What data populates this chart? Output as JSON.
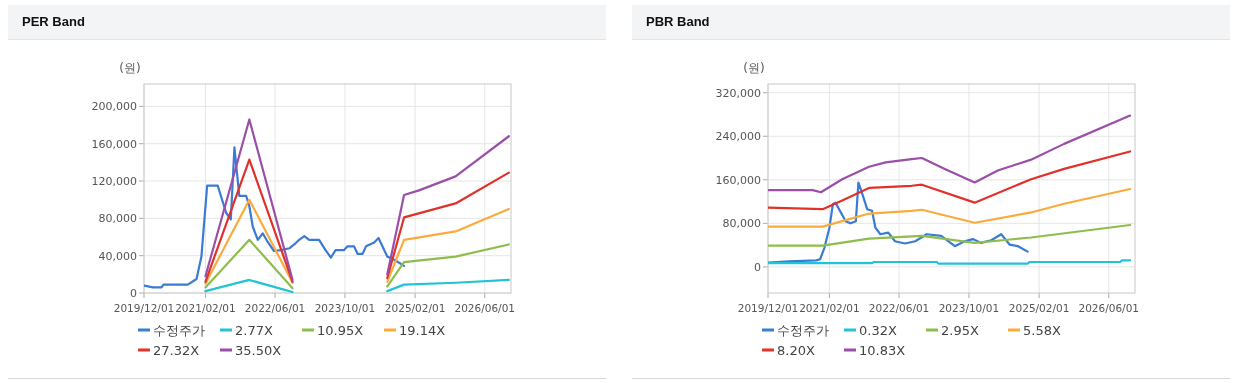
{
  "chart_data": [
    {
      "type": "line",
      "title": "PER Band",
      "ylabel": "(원)",
      "grid": true,
      "legend": "bottom",
      "marker": "none",
      "line_style": "solid",
      "xlim": [
        "2019-12-01",
        "2026-12-01"
      ],
      "ylim": [
        0,
        224000
      ],
      "xticks": [
        {
          "value": "2019-12-01",
          "label": "2019/12/01"
        },
        {
          "value": "2021-02-01",
          "label": "2021/02/01"
        },
        {
          "value": "2022-06-01",
          "label": "2022/06/01"
        },
        {
          "value": "2023-10-01",
          "label": "2023/10/01"
        },
        {
          "value": "2025-02-01",
          "label": "2025/02/01"
        },
        {
          "value": "2026-06-01",
          "label": "2026/06/01"
        }
      ],
      "yticks": [
        0,
        {
          "value": 40000,
          "label": "40,000"
        },
        {
          "value": 80000,
          "label": "80,000"
        },
        {
          "value": 120000,
          "label": "120,000"
        },
        {
          "value": 160000,
          "label": "160,000"
        },
        {
          "value": 200000,
          "label": "200,000"
        }
      ],
      "series": [
        {
          "name": "수정주가",
          "color": "#3a7bd5",
          "x": [
            "2019-12-01",
            "2020-02-02",
            "2020-04-01",
            "2020-04-15",
            "2020-10-01",
            "2020-12-01",
            "2021-01-04",
            "2021-02-13",
            "2021-04-28",
            "2021-06-25",
            "2021-07-28",
            "2021-08-22",
            "2021-09-25",
            "2021-11-12",
            "2021-12-04",
            "2021-12-28",
            "2022-02-01",
            "2022-03-07",
            "2022-04-10",
            "2022-05-25",
            "2022-07-12",
            "2022-09-10",
            "2022-10-13",
            "2022-11-16",
            "2022-12-22",
            "2023-01-25",
            "2023-04-04",
            "2023-05-19",
            "2023-06-25",
            "2023-07-28",
            "2023-09-25",
            "2023-10-19",
            "2023-12-04",
            "2023-12-28",
            "2024-02-01",
            "2024-02-25",
            "2024-04-22",
            "2024-05-22",
            "2024-07-22",
            "2024-08-25",
            "2024-11-16"
          ],
          "values": [
            8000,
            6000,
            6000,
            9000,
            9000,
            15000,
            39000,
            115000,
            115000,
            86000,
            79000,
            156000,
            104000,
            104000,
            93000,
            71000,
            57000,
            64000,
            55000,
            45000,
            46000,
            48000,
            52000,
            57000,
            61000,
            57000,
            57000,
            46000,
            38000,
            46000,
            46000,
            50000,
            50000,
            42000,
            42000,
            50000,
            54000,
            59000,
            39000,
            37000,
            29000
          ]
        },
        {
          "name": "2.77X",
          "color": "#22c3d6",
          "x": [
            "2021-02-01",
            "2021-12-04",
            "2022-10-01",
            null,
            "2024-07-22",
            "2024-11-16",
            "2025-11-10",
            "2026-11-16"
          ],
          "values": [
            2000,
            14000,
            1000,
            null,
            2000,
            9000,
            11000,
            14000
          ]
        },
        {
          "name": "10.95X",
          "color": "#8ebd4c",
          "x": [
            "2021-02-01",
            "2021-12-04",
            "2022-10-01",
            null,
            "2024-07-22",
            "2024-11-16",
            "2025-11-10",
            "2026-11-16"
          ],
          "values": [
            6000,
            57000,
            5000,
            null,
            7000,
            33000,
            39000,
            52000
          ]
        },
        {
          "name": "19.14X",
          "color": "#fbab3c",
          "x": [
            "2021-02-01",
            "2021-12-04",
            "2022-10-01",
            null,
            "2024-07-22",
            "2024-11-16",
            "2025-11-10",
            "2026-11-16"
          ],
          "values": [
            10000,
            100000,
            11000,
            null,
            12000,
            57000,
            66000,
            90000
          ]
        },
        {
          "name": "27.32X",
          "color": "#e0312b",
          "x": [
            "2021-02-01",
            "2021-12-04",
            "2022-10-01",
            null,
            "2024-07-22",
            "2024-11-16",
            "2025-11-10",
            "2026-11-16"
          ],
          "values": [
            12000,
            143000,
            12000,
            null,
            16000,
            81000,
            96000,
            129000
          ]
        },
        {
          "name": "35.50X",
          "color": "#9b4fa8",
          "x": [
            "2021-02-01",
            "2021-12-04",
            "2022-10-01",
            null,
            "2024-07-22",
            "2024-11-16",
            "2025-02-28",
            "2025-11-10",
            "2026-11-16"
          ],
          "values": [
            18000,
            186000,
            14000,
            null,
            20000,
            105000,
            110000,
            125000,
            168000
          ]
        }
      ]
    },
    {
      "type": "line",
      "title": "PBR Band",
      "ylabel": "(원)",
      "grid": true,
      "legend": "bottom",
      "marker": "none",
      "line_style": "solid",
      "xlim": [
        "2019-12-01",
        "2026-12-01"
      ],
      "ylim": [
        -48000,
        336000
      ],
      "xticks": [
        {
          "value": "2019-12-01",
          "label": "2019/12/01"
        },
        {
          "value": "2021-02-01",
          "label": "2021/02/01"
        },
        {
          "value": "2022-06-01",
          "label": "2022/06/01"
        },
        {
          "value": "2023-10-01",
          "label": "2023/10/01"
        },
        {
          "value": "2025-02-01",
          "label": "2025/02/01"
        },
        {
          "value": "2026-06-01",
          "label": "2026/06/01"
        }
      ],
      "yticks": [
        0,
        {
          "value": 80000,
          "label": "80,000"
        },
        {
          "value": 160000,
          "label": "160,000"
        },
        {
          "value": 240000,
          "label": "240,000"
        },
        {
          "value": 320000,
          "label": "320,000"
        }
      ],
      "series": [
        {
          "name": "수정주가",
          "color": "#3a7bd5",
          "x": [
            "2019-12-01",
            "2020-04-28",
            "2020-11-01",
            "2020-11-28",
            "2020-12-28",
            "2021-02-01",
            "2021-02-25",
            "2021-03-15",
            "2021-05-25",
            "2021-06-28",
            "2021-08-04",
            "2021-08-22",
            "2021-09-18",
            "2021-10-22",
            "2021-11-25",
            "2021-12-18",
            "2022-01-22",
            "2022-03-18",
            "2022-05-04",
            "2022-07-12",
            "2022-09-22",
            "2022-12-10",
            "2023-03-22",
            "2023-06-25",
            "2023-09-01",
            "2023-10-28",
            "2023-12-25",
            "2024-03-04",
            "2024-05-13",
            "2024-07-10",
            "2024-09-07",
            "2024-11-13"
          ],
          "values": [
            8000,
            10000,
            12000,
            14000,
            35000,
            72000,
            115000,
            118000,
            84000,
            80000,
            84000,
            155000,
            134000,
            106000,
            103000,
            72000,
            60000,
            63000,
            47000,
            43000,
            47000,
            60000,
            57000,
            38000,
            47000,
            51000,
            44000,
            49000,
            60000,
            41000,
            38000,
            28000
          ]
        },
        {
          "name": "0.32X",
          "color": "#22c3d6",
          "x": [
            "2019-12-01",
            "2021-11-25",
            "2021-12-07",
            "2023-02-19",
            "2023-03-01",
            "2024-11-13",
            "2024-11-25",
            "2026-08-19",
            "2026-09-01",
            "2026-10-28"
          ],
          "values": [
            7000,
            7000,
            9000,
            9000,
            6000,
            6000,
            9000,
            9000,
            12000,
            12000
          ]
        },
        {
          "name": "2.95X",
          "color": "#8ebd4c",
          "x": [
            "2019-12-01",
            "2020-12-16",
            "2021-11-04",
            "2022-11-07",
            "2023-11-10",
            "2024-12-07",
            "2026-10-28"
          ],
          "values": [
            39000,
            39000,
            52000,
            57000,
            44000,
            54000,
            77000
          ]
        },
        {
          "name": "5.58X",
          "color": "#fbab3c",
          "x": [
            "2019-12-01",
            "2020-12-16",
            "2021-05-01",
            "2021-11-04",
            "2022-08-28",
            "2022-11-07",
            "2023-11-10",
            "2024-12-07",
            "2025-07-25",
            "2026-10-28"
          ],
          "values": [
            74000,
            74000,
            84000,
            98000,
            103000,
            105000,
            81000,
            100000,
            116000,
            143000
          ]
        },
        {
          "name": "8.20X",
          "color": "#e0312b",
          "x": [
            "2019-12-01",
            "2020-12-16",
            "2021-05-01",
            "2021-11-04",
            "2022-08-28",
            "2022-11-07",
            "2023-11-10",
            "2024-12-07",
            "2025-07-25",
            "2026-10-28"
          ],
          "values": [
            109000,
            106000,
            122000,
            145000,
            149000,
            151000,
            118000,
            161000,
            180000,
            212000
          ]
        },
        {
          "name": "10.83X",
          "color": "#9b4fa8",
          "x": [
            "2019-12-01",
            "2020-10-07",
            "2020-12-04",
            "2021-05-01",
            "2021-11-04",
            "2022-02-28",
            "2022-08-28",
            "2022-11-07",
            "2023-04-16",
            "2023-11-10",
            "2024-04-19",
            "2024-12-07",
            "2025-07-25",
            "2026-10-28"
          ],
          "values": [
            141000,
            141000,
            137000,
            161000,
            184000,
            192000,
            198000,
            200000,
            180000,
            155000,
            177000,
            197000,
            226000,
            278000
          ]
        }
      ]
    }
  ]
}
